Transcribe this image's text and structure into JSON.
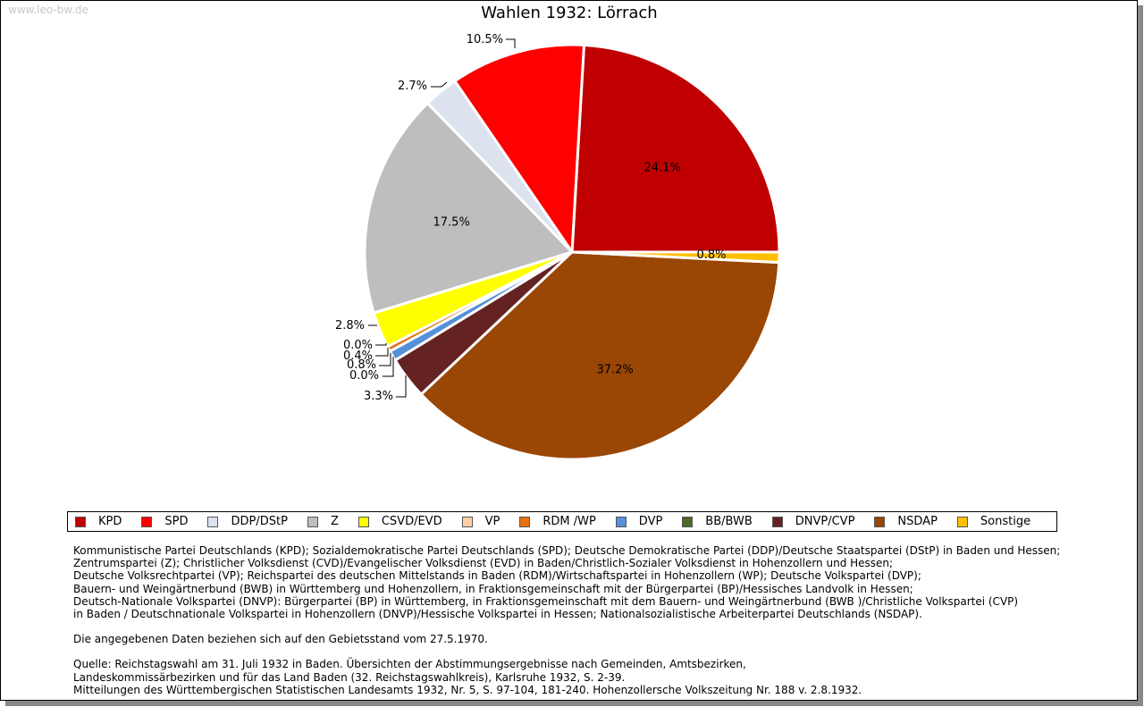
{
  "watermark": "www.leo-bw.de",
  "chart_data": {
    "type": "pie",
    "title": "Wahlen 1932: Lörrach",
    "categories": [
      "KPD",
      "SPD",
      "DDP/DStP",
      "Z",
      "CSVD/EVD",
      "VP",
      "RDM /WP",
      "DVP",
      "BB/BWB",
      "DNVP/CVP",
      "NSDAP",
      "Sonstige"
    ],
    "values": [
      24.1,
      10.5,
      2.7,
      17.5,
      2.8,
      0.0,
      0.4,
      0.8,
      0.0,
      3.3,
      37.2,
      0.8
    ],
    "labels": [
      "24.1%",
      "10.5%",
      "2.7%",
      "17.5%",
      "2.8%",
      "0.0%",
      "0.4%",
      "0.8%",
      "0.0%",
      "3.3%",
      "37.2%",
      "0.8%"
    ],
    "colors": [
      "#c00000",
      "#ff0000",
      "#dce3ef",
      "#bebebe",
      "#ffff00",
      "#ffcfa8",
      "#e8700a",
      "#5590d8",
      "#4a6a28",
      "#652222",
      "#9a4604",
      "#ffc000"
    ],
    "legend_position": "bottom"
  },
  "notes": {
    "parties": [
      "Kommunistische Partei Deutschlands (KPD); Sozialdemokratische Partei Deutschlands (SPD); Deutsche Demokratische Partei (DDP)/Deutsche Staatspartei (DStP) in Baden und Hessen;",
      "Zentrumspartei (Z); Christlicher Volksdienst (CVD)/Evangelischer Volksdienst (EVD) in Baden/Christlich-Sozialer Volksdienst in Hohenzollern und Hessen;",
      "Deutsche Volksrechtpartei (VP); Reichspartei des deutschen Mittelstands in Baden (RDM)/Wirtschaftspartei in Hohenzollern (WP); Deutsche Volkspartei (DVP);",
      "Bauern- und Weingärtnerbund (BWB) in Württemberg und Hohenzollern, in Fraktionsgemeinschaft mit der Bürgerpartei (BP)/Hessisches Landvolk in Hessen;",
      "Deutsch-Nationale Volkspartei (DNVP): Bürgerpartei (BP) in Württemberg, in Fraktionsgemeinschaft mit dem Bauern- und Weingärtnerbund (BWB )/Christliche Volkspartei (CVP)",
      "in Baden / Deutschnationale Volkspartei in Hohenzollern (DNVP)/Hessische Volkspartei in Hessen; Nationalsozialistische Arbeiterpartei Deutschlands (NSDAP)."
    ],
    "territory": "Die angegebenen Daten beziehen sich auf den Gebietsstand vom 27.5.1970.",
    "source": [
      "Quelle: Reichstagswahl am 31. Juli 1932 in Baden. Übersichten der Abstimmungsergebnisse nach Gemeinden, Amtsbezirken,",
      "Landeskommissärbezirken und für das Land Baden (32. Reichstagswahlkreis), Karlsruhe 1932, S. 2-39.",
      "Mitteilungen des Württembergischen Statistischen Landesamts 1932, Nr. 5, S. 97-104, 181-240. Hohenzollersche Volkszeitung Nr. 188 v. 2.8.1932."
    ]
  }
}
